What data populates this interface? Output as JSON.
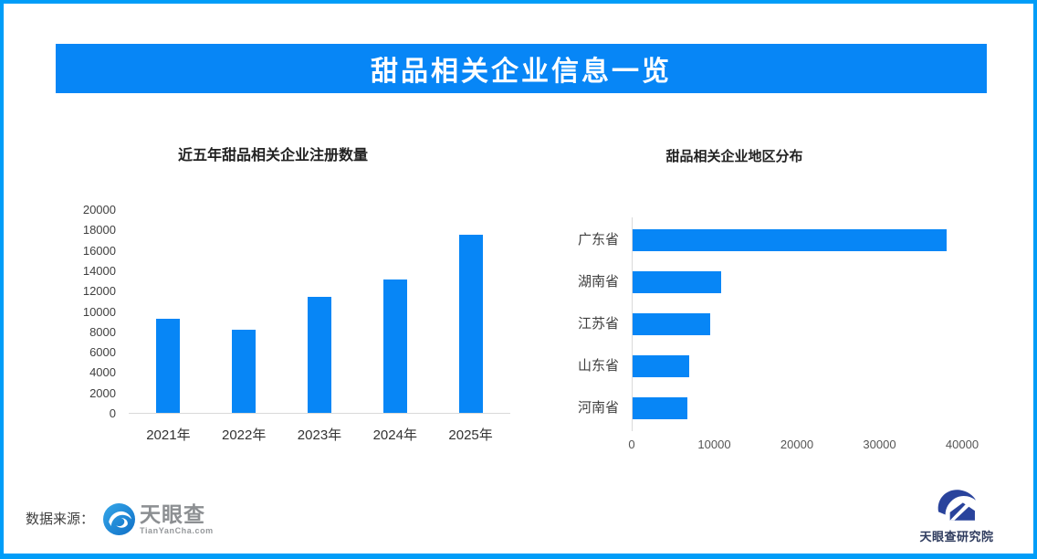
{
  "header": {
    "title": "甜品相关企业信息一览",
    "banner_color": "#0786f6",
    "text_color": "#ffffff"
  },
  "colors": {
    "bar_blue": "#0786f6",
    "page_border": "#009df8",
    "axis_gray": "#d9d9d9"
  },
  "chart_data": [
    {
      "type": "bar",
      "orientation": "vertical",
      "title": "近五年甜品相关企业注册数量",
      "categories": [
        "2021年",
        "2022年",
        "2023年",
        "2024年",
        "2025年"
      ],
      "values": [
        9200,
        8200,
        11400,
        13100,
        17500
      ],
      "xlabel": "",
      "ylabel": "",
      "ylim": [
        0,
        20000
      ],
      "ytick_step": 2000,
      "bar_color": "#0786f6",
      "grid": false,
      "legend": false
    },
    {
      "type": "bar",
      "orientation": "horizontal",
      "title": "甜品相关企业地区分布",
      "categories": [
        "广东省",
        "湖南省",
        "江苏省",
        "山东省",
        "河南省"
      ],
      "values": [
        38000,
        10700,
        9400,
        6900,
        6600
      ],
      "xlabel": "",
      "ylabel": "",
      "xlim": [
        0,
        40000
      ],
      "xtick_step": 10000,
      "bar_color": "#0786f6",
      "grid": false,
      "legend": false
    }
  ],
  "footer": {
    "source_label": "数据来源：",
    "tianyancha": {
      "name": "天眼查",
      "domain": "TianYanCha.com"
    },
    "institute": "天眼查研究院"
  }
}
